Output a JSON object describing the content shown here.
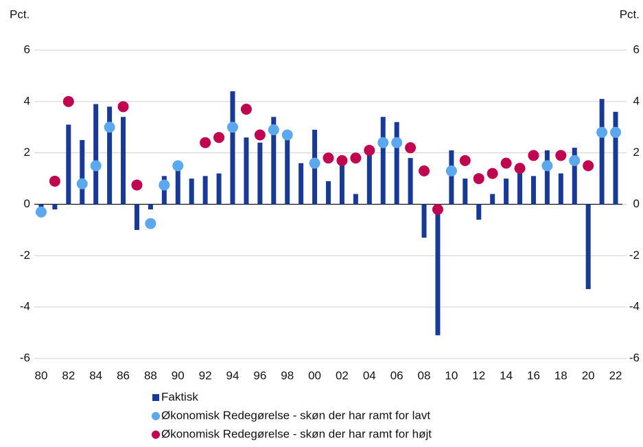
{
  "chart_data": {
    "type": "bar",
    "y_label": "Pct.",
    "y2_label": "Pct.",
    "categories": [
      "80",
      null,
      "82",
      null,
      "84",
      null,
      "86",
      null,
      "88",
      null,
      "90",
      null,
      "92",
      null,
      "94",
      null,
      "96",
      null,
      "98",
      null,
      "00",
      null,
      "02",
      null,
      "04",
      null,
      "06",
      null,
      "08",
      null,
      "10",
      null,
      "12",
      null,
      "14",
      null,
      "16",
      null,
      "18",
      null,
      "20",
      null,
      "22"
    ],
    "series": [
      {
        "name": "Faktisk",
        "type": "bar",
        "color": "#173a96",
        "values": [
          -0.3,
          -0.2,
          3.1,
          2.5,
          3.9,
          3.8,
          3.4,
          -1.0,
          -0.2,
          1.1,
          1.5,
          1.0,
          1.1,
          1.2,
          4.4,
          2.6,
          2.4,
          3.4,
          2.8,
          1.6,
          2.9,
          0.9,
          1.6,
          0.4,
          2.0,
          3.4,
          3.2,
          1.8,
          -1.3,
          -5.1,
          2.1,
          1.0,
          -0.6,
          0.4,
          1.0,
          1.2,
          1.1,
          2.1,
          1.2,
          2.2,
          -3.3,
          4.1,
          3.6
        ]
      },
      {
        "name": "Økonomisk Redegørelse - skøn der har ramt for lavt",
        "type": "scatter",
        "color": "#5ba8ef",
        "values": [
          -0.3,
          null,
          null,
          0.8,
          1.5,
          3.0,
          null,
          null,
          -0.75,
          0.75,
          1.5,
          null,
          null,
          null,
          3.0,
          null,
          null,
          2.9,
          2.7,
          null,
          1.6,
          null,
          null,
          null,
          null,
          2.4,
          2.4,
          null,
          null,
          null,
          1.3,
          null,
          null,
          null,
          null,
          null,
          null,
          1.5,
          null,
          1.7,
          null,
          2.8,
          2.8
        ]
      },
      {
        "name": "Økonomisk Redegørelse - skøn der har ramt for højt",
        "type": "scatter",
        "color": "#c0044f",
        "values": [
          null,
          0.9,
          4.0,
          null,
          null,
          null,
          3.8,
          0.75,
          null,
          null,
          null,
          null,
          2.4,
          2.6,
          null,
          3.7,
          2.7,
          null,
          null,
          null,
          null,
          1.8,
          1.7,
          1.8,
          2.1,
          null,
          null,
          2.2,
          1.3,
          -0.2,
          null,
          1.7,
          1.0,
          1.2,
          1.6,
          1.4,
          1.9,
          null,
          1.9,
          null,
          1.5,
          null,
          null
        ]
      }
    ],
    "ylim": [
      -6,
      6
    ],
    "yticks": [
      -6,
      -4,
      -2,
      0,
      2,
      4,
      6
    ],
    "y2lim": [
      -6,
      6
    ],
    "y2ticks": [
      -6,
      -4,
      -2,
      0,
      2,
      4,
      6
    ],
    "grid": true
  }
}
